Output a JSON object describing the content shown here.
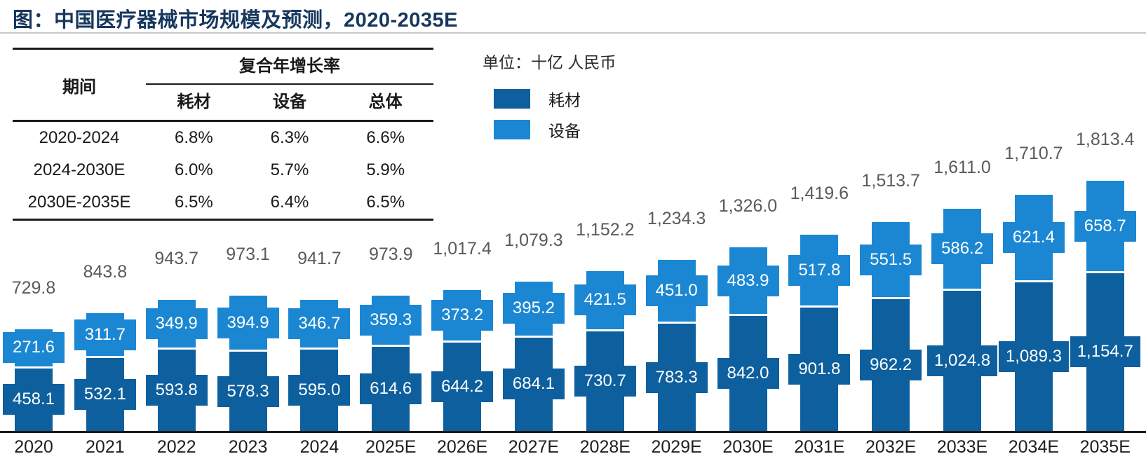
{
  "title": "图：中国医疗器械市场规模及预测，2020-2035E",
  "unit_label": "单位：十亿 人民币",
  "colors": {
    "consumables": "#0e5f9e",
    "equipment": "#1b87d3",
    "title": "#17375e",
    "total_label": "#5a5a5a",
    "axis": "#1a1a1a"
  },
  "legend": {
    "items": [
      {
        "label": "耗材",
        "color": "#0e5f9e"
      },
      {
        "label": "设备",
        "color": "#1b87d3"
      }
    ]
  },
  "cagr_table": {
    "period_header": "期间",
    "group_header": "复合年增长率",
    "col_headers": [
      "耗材",
      "设备",
      "总体"
    ],
    "rows": [
      {
        "period": "2020-2024",
        "values": [
          "6.8%",
          "6.3%",
          "6.6%"
        ]
      },
      {
        "period": "2024-2030E",
        "values": [
          "6.0%",
          "5.7%",
          "5.9%"
        ]
      },
      {
        "period": "2030E-2035E",
        "values": [
          "6.5%",
          "6.4%",
          "6.5%"
        ]
      }
    ]
  },
  "chart_data": {
    "type": "bar",
    "stacked": true,
    "unit": "十亿 人民币",
    "categories": [
      "2020",
      "2021",
      "2022",
      "2023",
      "2024",
      "2025E",
      "2026E",
      "2027E",
      "2028E",
      "2029E",
      "2030E",
      "2031E",
      "2032E",
      "2033E",
      "2034E",
      "2035E"
    ],
    "series": [
      {
        "name": "耗材",
        "color": "#0e5f9e",
        "values": [
          458.1,
          532.1,
          593.8,
          578.3,
          595.0,
          614.6,
          644.2,
          684.1,
          730.7,
          783.3,
          842.0,
          901.8,
          962.2,
          1024.8,
          1089.3,
          1154.7
        ],
        "labels": [
          "458.1",
          "532.1",
          "593.8",
          "578.3",
          "595.0",
          "614.6",
          "644.2",
          "684.1",
          "730.7",
          "783.3",
          "842.0",
          "901.8",
          "962.2",
          "1,024.8",
          "1,089.3",
          "1,154.7"
        ]
      },
      {
        "name": "设备",
        "color": "#1b87d3",
        "values": [
          271.6,
          311.7,
          349.9,
          394.9,
          346.7,
          359.3,
          373.2,
          395.2,
          421.5,
          451.0,
          483.9,
          517.8,
          551.5,
          586.2,
          621.4,
          658.7
        ],
        "labels": [
          "271.6",
          "311.7",
          "349.9",
          "394.9",
          "346.7",
          "359.3",
          "373.2",
          "395.2",
          "421.5",
          "451.0",
          "483.9",
          "517.8",
          "551.5",
          "586.2",
          "621.4",
          "658.7"
        ]
      }
    ],
    "totals": [
      729.8,
      843.8,
      943.7,
      973.1,
      941.7,
      973.9,
      1017.4,
      1079.3,
      1152.2,
      1234.3,
      1326.0,
      1419.6,
      1513.7,
      1611.0,
      1710.7,
      1813.4
    ],
    "total_labels": [
      "729.8",
      "843.8",
      "943.7",
      "973.1",
      "941.7",
      "973.9",
      "1,017.4",
      "1,079.3",
      "1,152.2",
      "1,234.3",
      "1,326.0",
      "1,419.6",
      "1,513.7",
      "1,611.0",
      "1,710.7",
      "1,813.4"
    ],
    "ylim": [
      0,
      1900
    ],
    "grid": false,
    "legend_position": "upper-left"
  }
}
